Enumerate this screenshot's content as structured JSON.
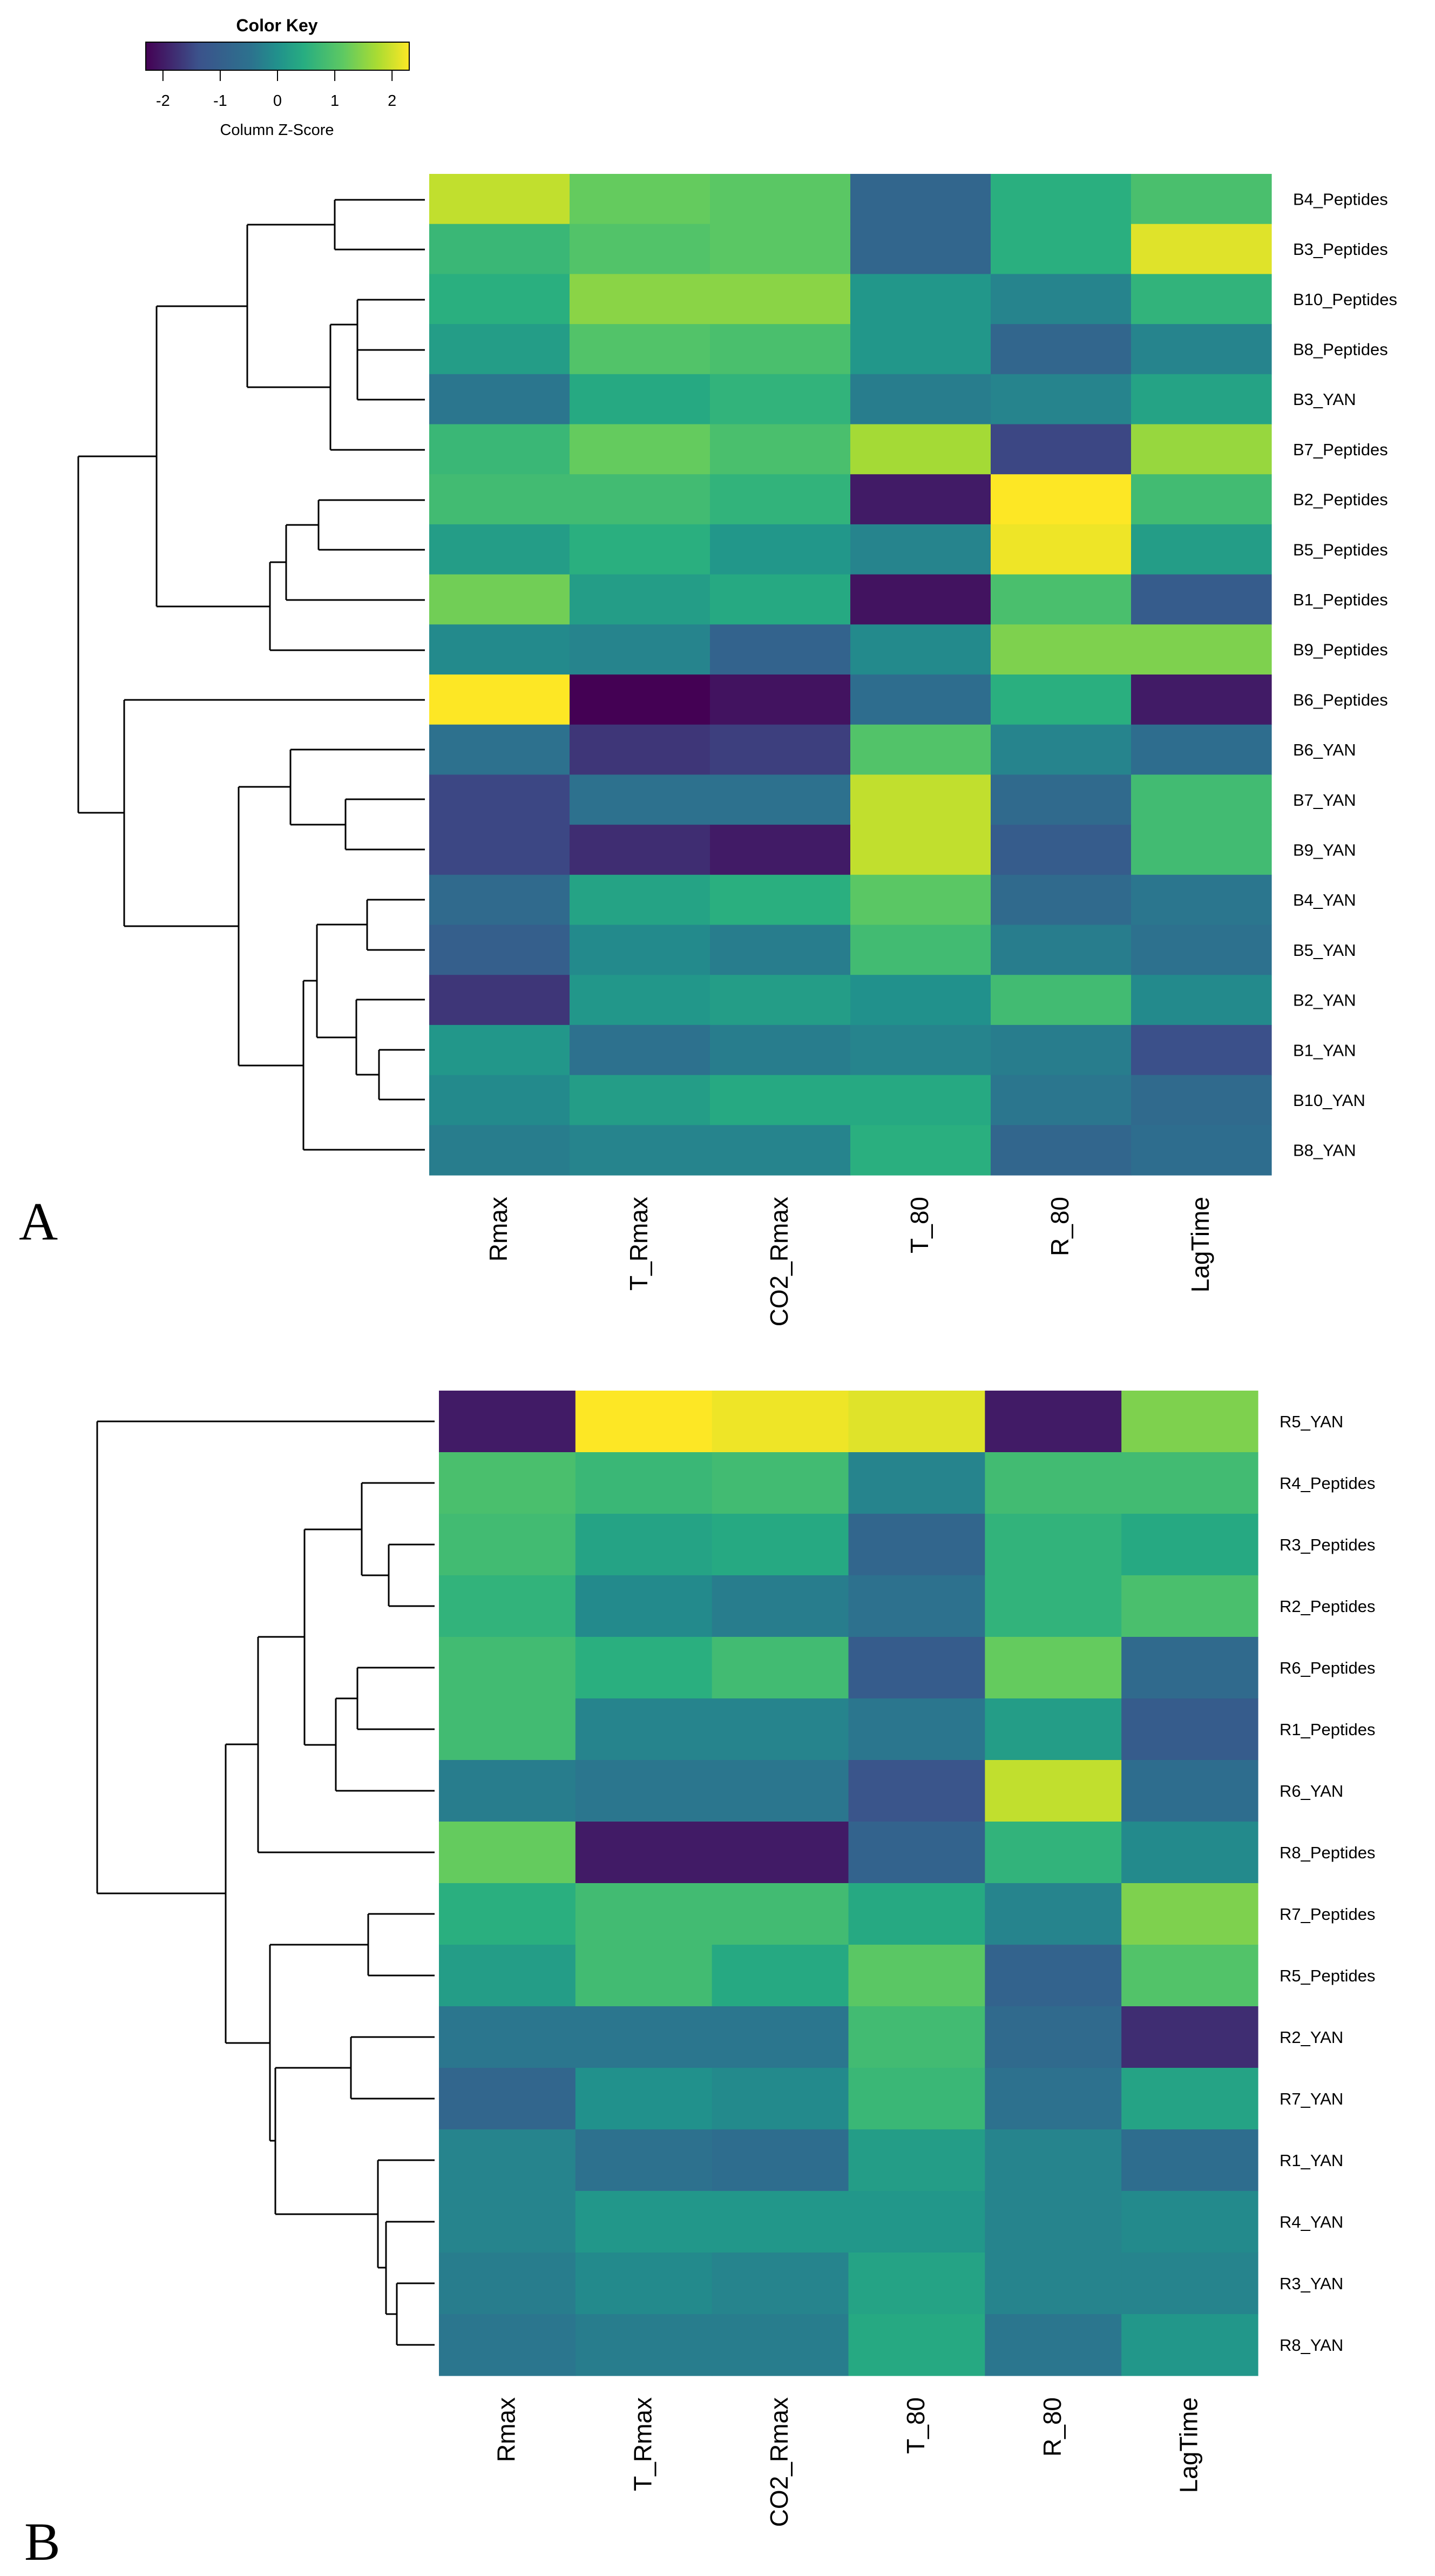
{
  "color_key": {
    "title": "Color Key",
    "axis_label": "Column Z-Score",
    "ticks": [
      "-2",
      "-1",
      "0",
      "1",
      "2"
    ],
    "tick_values": [
      -2,
      -1,
      0,
      1,
      2
    ],
    "range": [
      -2.3,
      2.3
    ],
    "palette": [
      "#440154",
      "#3b528b",
      "#21918c",
      "#27ad81",
      "#5ec962",
      "#fde725"
    ]
  },
  "chart_data": [
    {
      "type": "heatmap",
      "panel_label": "A",
      "columns": [
        "Rmax",
        "T_Rmax",
        "CO2_Rmax",
        "T_80",
        "R_80",
        "LagTime"
      ],
      "rows": [
        "B4_Peptides",
        "B3_Peptides",
        "B10_Peptides",
        "B8_Peptides",
        "B3_YAN",
        "B7_Peptides",
        "B2_Peptides",
        "B5_Peptides",
        "B1_Peptides",
        "B9_Peptides",
        "B6_Peptides",
        "B6_YAN",
        "B7_YAN",
        "B9_YAN",
        "B4_YAN",
        "B5_YAN",
        "B2_YAN",
        "B1_YAN",
        "B10_YAN",
        "B8_YAN"
      ],
      "values": [
        [
          1.9,
          1.2,
          1.1,
          -0.8,
          0.5,
          0.9
        ],
        [
          0.7,
          1.0,
          1.1,
          -0.8,
          0.5,
          2.1
        ],
        [
          0.5,
          1.5,
          1.5,
          0.1,
          -0.2,
          0.6
        ],
        [
          0.2,
          1.0,
          0.9,
          0.1,
          -0.8,
          -0.2
        ],
        [
          -0.4,
          0.4,
          0.6,
          -0.3,
          -0.2,
          0.3
        ],
        [
          0.7,
          1.2,
          0.9,
          1.7,
          -1.5,
          1.6
        ],
        [
          0.8,
          0.8,
          0.6,
          -2.0,
          2.3,
          0.8
        ],
        [
          0.2,
          0.5,
          0.1,
          -0.2,
          2.2,
          0.2
        ],
        [
          1.3,
          0.2,
          0.4,
          -2.1,
          0.9,
          -1.1
        ],
        [
          -0.1,
          -0.2,
          -0.9,
          -0.1,
          1.4,
          1.4
        ],
        [
          2.3,
          -2.3,
          -2.1,
          -0.6,
          0.5,
          -2.0
        ],
        [
          -0.5,
          -1.7,
          -1.6,
          1.0,
          -0.2,
          -0.6
        ],
        [
          -1.5,
          -0.5,
          -0.5,
          1.9,
          -0.7,
          0.8
        ],
        [
          -1.5,
          -1.8,
          -2.0,
          1.9,
          -1.1,
          0.8
        ],
        [
          -0.7,
          0.3,
          0.5,
          1.1,
          -0.7,
          -0.4
        ],
        [
          -1.0,
          -0.1,
          -0.3,
          0.8,
          -0.3,
          -0.5
        ],
        [
          -1.7,
          0.1,
          0.2,
          0.0,
          0.8,
          -0.1
        ],
        [
          0.1,
          -0.5,
          -0.3,
          -0.2,
          -0.3,
          -1.4
        ],
        [
          -0.1,
          0.2,
          0.4,
          0.4,
          -0.4,
          -0.7
        ],
        [
          -0.3,
          -0.2,
          -0.2,
          0.5,
          -0.8,
          -0.6
        ]
      ]
    },
    {
      "type": "heatmap",
      "panel_label": "B",
      "columns": [
        "Rmax",
        "T_Rmax",
        "CO2_Rmax",
        "T_80",
        "R_80",
        "LagTime"
      ],
      "rows": [
        "R5_YAN",
        "R4_Peptides",
        "R3_Peptides",
        "R2_Peptides",
        "R6_Peptides",
        "R1_Peptides",
        "R6_YAN",
        "R8_Peptides",
        "R7_Peptides",
        "R5_Peptides",
        "R2_YAN",
        "R7_YAN",
        "R1_YAN",
        "R4_YAN",
        "R3_YAN",
        "R8_YAN"
      ],
      "values": [
        [
          -2.0,
          2.3,
          2.2,
          2.1,
          -2.0,
          1.4
        ],
        [
          0.9,
          0.7,
          0.8,
          -0.2,
          0.8,
          0.8
        ],
        [
          0.8,
          0.3,
          0.4,
          -0.8,
          0.6,
          0.4
        ],
        [
          0.6,
          -0.1,
          -0.3,
          -0.5,
          0.6,
          0.9
        ],
        [
          0.8,
          0.5,
          0.8,
          -1.1,
          1.2,
          -0.7
        ],
        [
          0.8,
          -0.2,
          -0.2,
          -0.4,
          0.2,
          -1.1
        ],
        [
          -0.3,
          -0.4,
          -0.4,
          -1.3,
          1.9,
          -0.6
        ],
        [
          1.2,
          -2.0,
          -2.0,
          -0.9,
          0.6,
          -0.1
        ],
        [
          0.5,
          0.8,
          0.8,
          0.4,
          -0.2,
          1.4
        ],
        [
          0.2,
          0.8,
          0.4,
          1.1,
          -0.9,
          1.0
        ],
        [
          -0.4,
          -0.4,
          -0.4,
          0.8,
          -0.7,
          -1.8
        ],
        [
          -0.8,
          0.0,
          -0.1,
          0.7,
          -0.5,
          0.3
        ],
        [
          -0.2,
          -0.5,
          -0.6,
          0.2,
          -0.2,
          -0.6
        ],
        [
          -0.2,
          0.1,
          0.1,
          0.1,
          -0.2,
          -0.1
        ],
        [
          -0.3,
          -0.1,
          -0.2,
          0.3,
          -0.2,
          -0.2
        ],
        [
          -0.4,
          -0.3,
          -0.3,
          0.4,
          -0.4,
          0.1
        ]
      ]
    }
  ]
}
